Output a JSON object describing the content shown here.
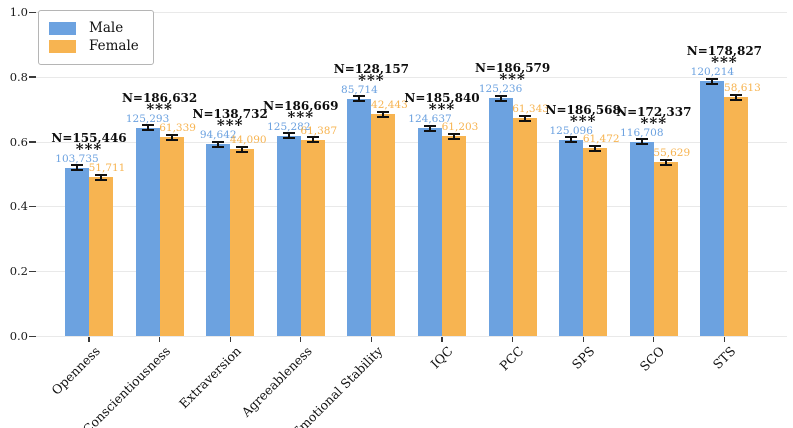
{
  "chart_data": {
    "type": "bar",
    "title": "",
    "xlabel": "",
    "ylabel": "",
    "ylim": [
      0.0,
      1.0
    ],
    "yticks": [
      "0.0",
      "0.2",
      "0.4",
      "0.6",
      "0.8",
      "1.0"
    ],
    "grid": true,
    "legend_position": "upper left",
    "categories": [
      "Openness",
      "Conscientiousness",
      "Extraversion",
      "Agreeableness",
      "Emotional Stability",
      "IQC",
      "PCC",
      "SPS",
      "SCO",
      "STS"
    ],
    "series": [
      {
        "name": "Male",
        "color": "#6CA2E0",
        "values": [
          0.52,
          0.642,
          0.592,
          0.618,
          0.732,
          0.641,
          0.734,
          0.605,
          0.599,
          0.787
        ],
        "counts": [
          "103,735",
          "125,293",
          "94,642",
          "125,282",
          "85,714",
          "124,637",
          "125,236",
          "125,096",
          "116,708",
          "120,214"
        ]
      },
      {
        "name": "Female",
        "color": "#F7B451",
        "values": [
          0.49,
          0.614,
          0.576,
          0.605,
          0.685,
          0.617,
          0.672,
          0.58,
          0.537,
          0.737
        ],
        "counts": [
          "51,711",
          "61,339",
          "44,090",
          "61,387",
          "42,443",
          "61,203",
          "61,343",
          "61,472",
          "55,629",
          "58,613"
        ]
      }
    ],
    "annotations": {
      "n_labels": [
        "N=155,446",
        "N=186,632",
        "N=138,732",
        "N=186,669",
        "N=128,157",
        "N=185,840",
        "N=186,579",
        "N=186,568",
        "N=172,337",
        "N=178,827"
      ],
      "significance": [
        "***",
        "***",
        "***",
        "***",
        "***",
        "***",
        "***",
        "***",
        "***",
        "***"
      ]
    },
    "error_bar": 0.004,
    "colors": {
      "grid": "#e9e9e9",
      "error": "#111111",
      "tick_text": "#1a1a1a"
    }
  },
  "legend": {
    "items": [
      {
        "label": "Male",
        "color": "#6CA2E0"
      },
      {
        "label": "Female",
        "color": "#F7B451"
      }
    ]
  }
}
